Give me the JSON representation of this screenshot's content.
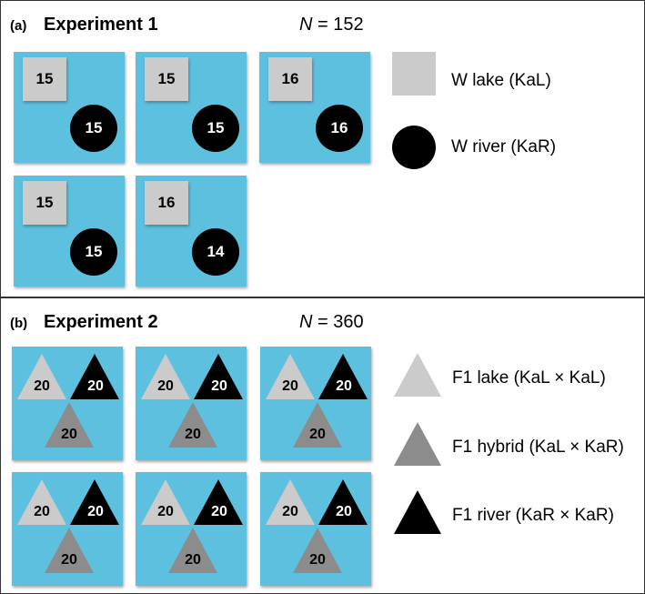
{
  "experiment1": {
    "tag": "(a)",
    "title": "Experiment 1",
    "n_label": "N",
    "n_value": "= 152",
    "tanks": [
      {
        "lake": "15",
        "river": "15"
      },
      {
        "lake": "15",
        "river": "15"
      },
      {
        "lake": "16",
        "river": "16"
      },
      {
        "lake": "15",
        "river": "15"
      },
      {
        "lake": "16",
        "river": "14"
      }
    ],
    "legend": [
      {
        "shape": "square",
        "color": "#cbcbcb",
        "label": "W lake (KaL)"
      },
      {
        "shape": "circle",
        "color": "#000000",
        "label": "W river (KaR)"
      }
    ]
  },
  "experiment2": {
    "tag": "(b)",
    "title": "Experiment 2",
    "n_label": "N",
    "n_value": "= 360",
    "tanks": [
      {
        "lake": "20",
        "river": "20",
        "hybrid": "20"
      },
      {
        "lake": "20",
        "river": "20",
        "hybrid": "20"
      },
      {
        "lake": "20",
        "river": "20",
        "hybrid": "20"
      },
      {
        "lake": "20",
        "river": "20",
        "hybrid": "20"
      },
      {
        "lake": "20",
        "river": "20",
        "hybrid": "20"
      },
      {
        "lake": "20",
        "river": "20",
        "hybrid": "20"
      }
    ],
    "legend": [
      {
        "shape": "triangle",
        "color": "#cbcbcb",
        "label": "F1 lake (KaL × KaL)"
      },
      {
        "shape": "triangle",
        "color": "#8c8c8c",
        "label": "F1 hybrid (KaL × KaR)"
      },
      {
        "shape": "triangle",
        "color": "#000000",
        "label": "F1 river (KaR × KaR)"
      }
    ]
  },
  "colors": {
    "tank": "#5ec0df",
    "lake": "#cbcbcb",
    "hybrid": "#8c8c8c",
    "river": "#000000"
  }
}
